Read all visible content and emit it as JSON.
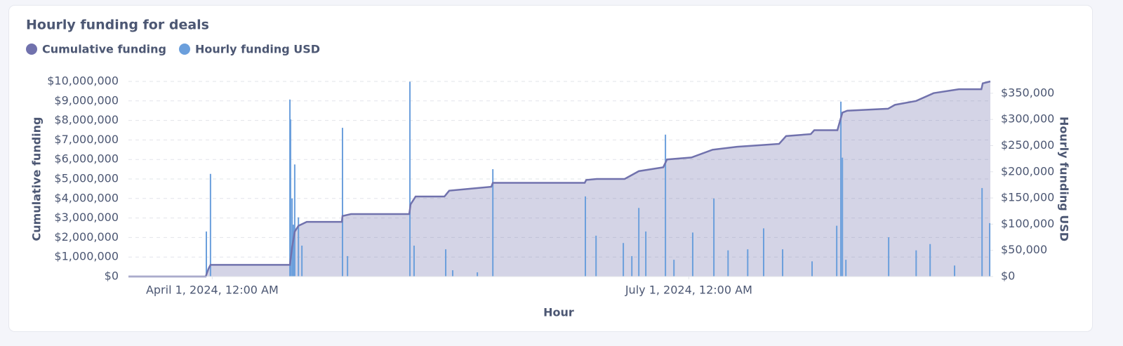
{
  "chart_data": {
    "type": "combo",
    "title": "Hourly funding for deals",
    "x_label": "Hour",
    "y_label": "Cumulative funding",
    "y2_label": "Hourly funding USD",
    "xlim": [
      "2024-03-16T00:00",
      "2024-08-27T14:00"
    ],
    "xticks": [
      {
        "value": "2024-04-01T00:00",
        "label": "April 1, 2024, 12:00 AM"
      },
      {
        "value": "2024-07-01T00:00",
        "label": "July 1, 2024, 12:00 AM"
      }
    ],
    "ylim": [
      0,
      10000000
    ],
    "yticks": [
      {
        "value": 0,
        "label": "$0"
      },
      {
        "value": 1000000,
        "label": "$1,000,000"
      },
      {
        "value": 2000000,
        "label": "$2,000,000"
      },
      {
        "value": 3000000,
        "label": "$3,000,000"
      },
      {
        "value": 4000000,
        "label": "$4,000,000"
      },
      {
        "value": 5000000,
        "label": "$5,000,000"
      },
      {
        "value": 6000000,
        "label": "$6,000,000"
      },
      {
        "value": 7000000,
        "label": "$7,000,000"
      },
      {
        "value": 8000000,
        "label": "$8,000,000"
      },
      {
        "value": 9000000,
        "label": "$9,000,000"
      },
      {
        "value": 10000000,
        "label": "$10,000,000"
      }
    ],
    "y2lim": [
      0,
      372600
    ],
    "y2ticks": [
      {
        "value": 0,
        "label": "$0"
      },
      {
        "value": 50000,
        "label": "$50,000"
      },
      {
        "value": 100000,
        "label": "$100,000"
      },
      {
        "value": 150000,
        "label": "$150,000"
      },
      {
        "value": 200000,
        "label": "$200,000"
      },
      {
        "value": 250000,
        "label": "$250,000"
      },
      {
        "value": 300000,
        "label": "$300,000"
      },
      {
        "value": 350000,
        "label": "$350,000"
      }
    ],
    "grid": true,
    "series": [
      {
        "name": "Cumulative funding",
        "type": "area",
        "color": "#7172ad",
        "x": [
          "2024-03-16T00:00",
          "2024-03-30T18:00",
          "2024-03-31T07:00",
          "2024-03-31T16:00",
          "2024-04-15T20:00",
          "2024-04-16T06:00",
          "2024-04-16T18:00",
          "2024-04-17T11:00",
          "2024-04-19T01:00",
          "2024-04-25T18:00",
          "2024-04-25T21:00",
          "2024-04-27T12:00",
          "2024-05-08T15:00",
          "2024-05-08T21:00",
          "2024-05-09T20:00",
          "2024-05-15T08:00",
          "2024-05-16T06:00",
          "2024-05-20T07:00",
          "2024-05-24T07:00",
          "2024-05-24T14:00",
          "2024-06-11T03:00",
          "2024-06-11T10:00",
          "2024-06-13T10:00",
          "2024-06-18T18:00",
          "2024-06-21T11:00",
          "2024-06-26T03:00",
          "2024-06-26T20:00",
          "2024-07-01T12:00",
          "2024-07-05T13:00",
          "2024-07-10T05:00",
          "2024-07-15T14:00",
          "2024-07-18T06:00",
          "2024-07-19T14:00",
          "2024-07-24T07:00",
          "2024-07-24T23:00",
          "2024-07-29T09:00",
          "2024-07-30T08:00",
          "2024-07-31T06:00",
          "2024-08-08T01:00",
          "2024-08-09T09:00",
          "2024-08-13T10:00",
          "2024-08-16T18:00",
          "2024-08-21T14:00",
          "2024-08-25T21:00",
          "2024-08-26T03:00",
          "2024-08-27T14:00"
        ],
        "values": [
          0,
          0,
          400000,
          600000,
          600000,
          1500000,
          2300000,
          2600000,
          2800000,
          2800000,
          3100000,
          3200000,
          3200000,
          3700000,
          4100000,
          4100000,
          4400000,
          4500000,
          4600000,
          4800000,
          4800000,
          4950000,
          5000000,
          5000000,
          5400000,
          5600000,
          6000000,
          6100000,
          6500000,
          6650000,
          6750000,
          6800000,
          7200000,
          7300000,
          7500000,
          7500000,
          8400000,
          8500000,
          8600000,
          8800000,
          9000000,
          9400000,
          9600000,
          9600000,
          9900000,
          10000000
        ]
      },
      {
        "name": "Hourly funding USD",
        "type": "bar",
        "axis": "y2",
        "color": "#6b9fdc",
        "x": [
          "2024-03-30T21:00",
          "2024-03-31T16:00",
          "2024-04-15T20:00",
          "2024-04-15T23:00",
          "2024-04-16T06:00",
          "2024-04-16T12:00",
          "2024-04-16T18:00",
          "2024-04-17T11:00",
          "2024-04-18T03:00",
          "2024-04-25T21:00",
          "2024-04-26T20:00",
          "2024-05-08T18:00",
          "2024-05-09T13:00",
          "2024-05-15T14:00",
          "2024-05-16T22:00",
          "2024-05-21T15:00",
          "2024-05-24T14:00",
          "2024-06-11T06:00",
          "2024-06-13T07:00",
          "2024-06-18T12:00",
          "2024-06-20T03:00",
          "2024-06-21T11:00",
          "2024-06-22T19:00",
          "2024-06-26T13:00",
          "2024-06-28T04:00",
          "2024-07-01T18:00",
          "2024-07-05T19:00",
          "2024-07-08T12:00",
          "2024-07-12T06:00",
          "2024-07-15T07:00",
          "2024-07-18T22:00",
          "2024-07-24T13:00",
          "2024-07-29T06:00",
          "2024-07-30T01:00",
          "2024-07-30T08:00",
          "2024-07-31T00:00",
          "2024-08-08T04:00",
          "2024-08-13T10:00",
          "2024-08-16T02:00",
          "2024-08-20T18:00",
          "2024-08-26T00:00",
          "2024-08-27T11:00"
        ],
        "values": [
          86000,
          196000,
          338000,
          300000,
          149000,
          99000,
          214000,
          113000,
          59000,
          284000,
          39000,
          372000,
          59000,
          52000,
          12000,
          8000,
          205000,
          153000,
          78000,
          64000,
          39000,
          131000,
          86000,
          271000,
          32000,
          84000,
          149000,
          50000,
          52000,
          92000,
          52000,
          29000,
          97000,
          334000,
          227000,
          32000,
          75000,
          50000,
          62000,
          21000,
          169000,
          102000
        ]
      }
    ]
  }
}
